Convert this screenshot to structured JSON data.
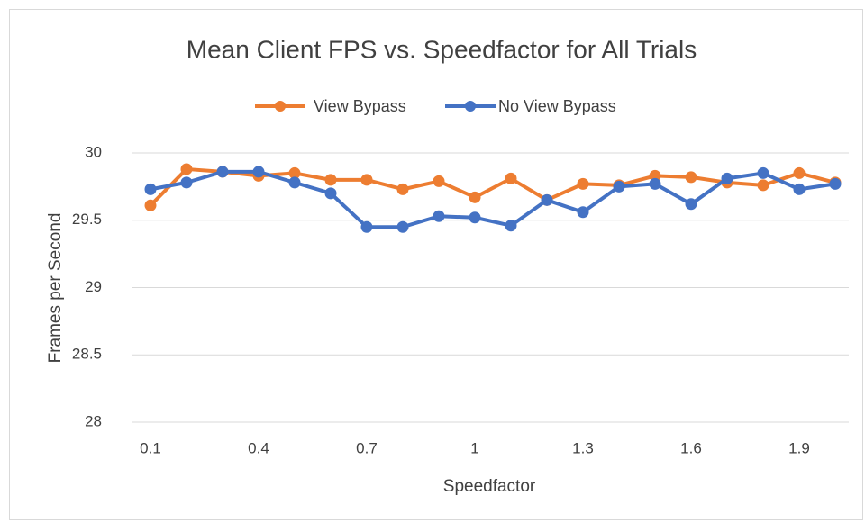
{
  "chart_data": {
    "type": "line",
    "title": "Mean Client FPS vs. Speedfactor for All Trials",
    "x_label": "Speedfactor",
    "y_label": "Frames per Second",
    "categories": [
      "0.1",
      null,
      null,
      "0.4",
      null,
      null,
      "0.7",
      null,
      null,
      "1",
      null,
      null,
      "1.3",
      null,
      null,
      "1.6",
      null,
      null,
      "1.9",
      null
    ],
    "series": [
      {
        "name": "View Bypass",
        "color": "#ed7d31",
        "values": [
          29.61,
          29.88,
          29.86,
          29.83,
          29.85,
          29.8,
          29.8,
          29.73,
          29.79,
          29.67,
          29.81,
          29.65,
          29.77,
          29.76,
          29.83,
          29.82,
          29.78,
          29.76,
          29.85,
          29.78
        ]
      },
      {
        "name": "No View Bypass",
        "color": "#4472c4",
        "values": [
          29.73,
          29.78,
          29.86,
          29.86,
          29.78,
          29.7,
          29.45,
          29.45,
          29.53,
          29.52,
          29.46,
          29.65,
          29.56,
          29.75,
          29.77,
          29.62,
          29.81,
          29.85,
          29.73,
          29.77
        ]
      }
    ],
    "ylim": [
      28,
      30
    ],
    "yticks": [
      28,
      28.5,
      29,
      29.5,
      30
    ],
    "grid": true,
    "legend": "top"
  }
}
